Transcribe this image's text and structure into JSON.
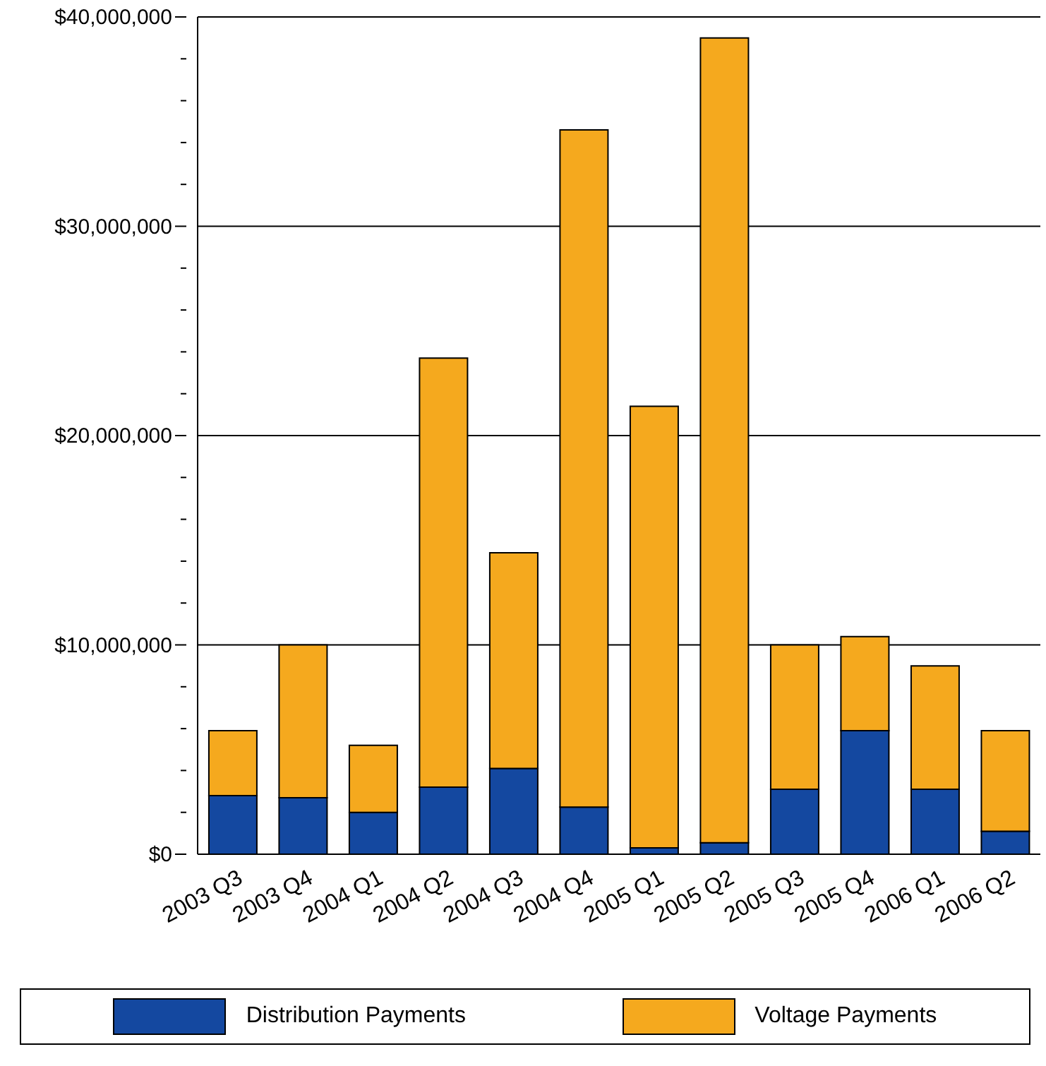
{
  "chart_data": {
    "type": "bar",
    "stacked": true,
    "categories": [
      "2003 Q3",
      "2003 Q4",
      "2004 Q1",
      "2004 Q2",
      "2004 Q3",
      "2004 Q4",
      "2005 Q1",
      "2005 Q2",
      "2005 Q3",
      "2005 Q4",
      "2006 Q1",
      "2006 Q2"
    ],
    "series": [
      {
        "name": "Distribution Payments",
        "color": "#1448a0",
        "values": [
          2800000,
          2700000,
          2000000,
          3200000,
          4100000,
          2250000,
          300000,
          550000,
          3100000,
          5900000,
          3100000,
          1100000
        ]
      },
      {
        "name": "Voltage Payments",
        "color": "#f5a91e",
        "values": [
          3100000,
          7300000,
          3200000,
          20500000,
          10300000,
          32350000,
          21100000,
          38450000,
          6900000,
          4500000,
          5900000,
          4800000
        ]
      }
    ],
    "ylim": [
      0,
      40000000
    ],
    "yticks": [
      {
        "value": 0,
        "label": "$0"
      },
      {
        "value": 2000000,
        "label": null
      },
      {
        "value": 4000000,
        "label": null
      },
      {
        "value": 6000000,
        "label": null
      },
      {
        "value": 8000000,
        "label": null
      },
      {
        "value": 10000000,
        "label": "$10,000,000"
      },
      {
        "value": 12000000,
        "label": null
      },
      {
        "value": 14000000,
        "label": null
      },
      {
        "value": 16000000,
        "label": null
      },
      {
        "value": 18000000,
        "label": null
      },
      {
        "value": 20000000,
        "label": "$20,000,000"
      },
      {
        "value": 22000000,
        "label": null
      },
      {
        "value": 24000000,
        "label": null
      },
      {
        "value": 26000000,
        "label": null
      },
      {
        "value": 28000000,
        "label": null
      },
      {
        "value": 30000000,
        "label": "$30,000,000"
      },
      {
        "value": 32000000,
        "label": null
      },
      {
        "value": 34000000,
        "label": null
      },
      {
        "value": 36000000,
        "label": null
      },
      {
        "value": 38000000,
        "label": null
      },
      {
        "value": 40000000,
        "label": "$40,000,000"
      }
    ],
    "grid": "y",
    "legend": "bottom"
  }
}
